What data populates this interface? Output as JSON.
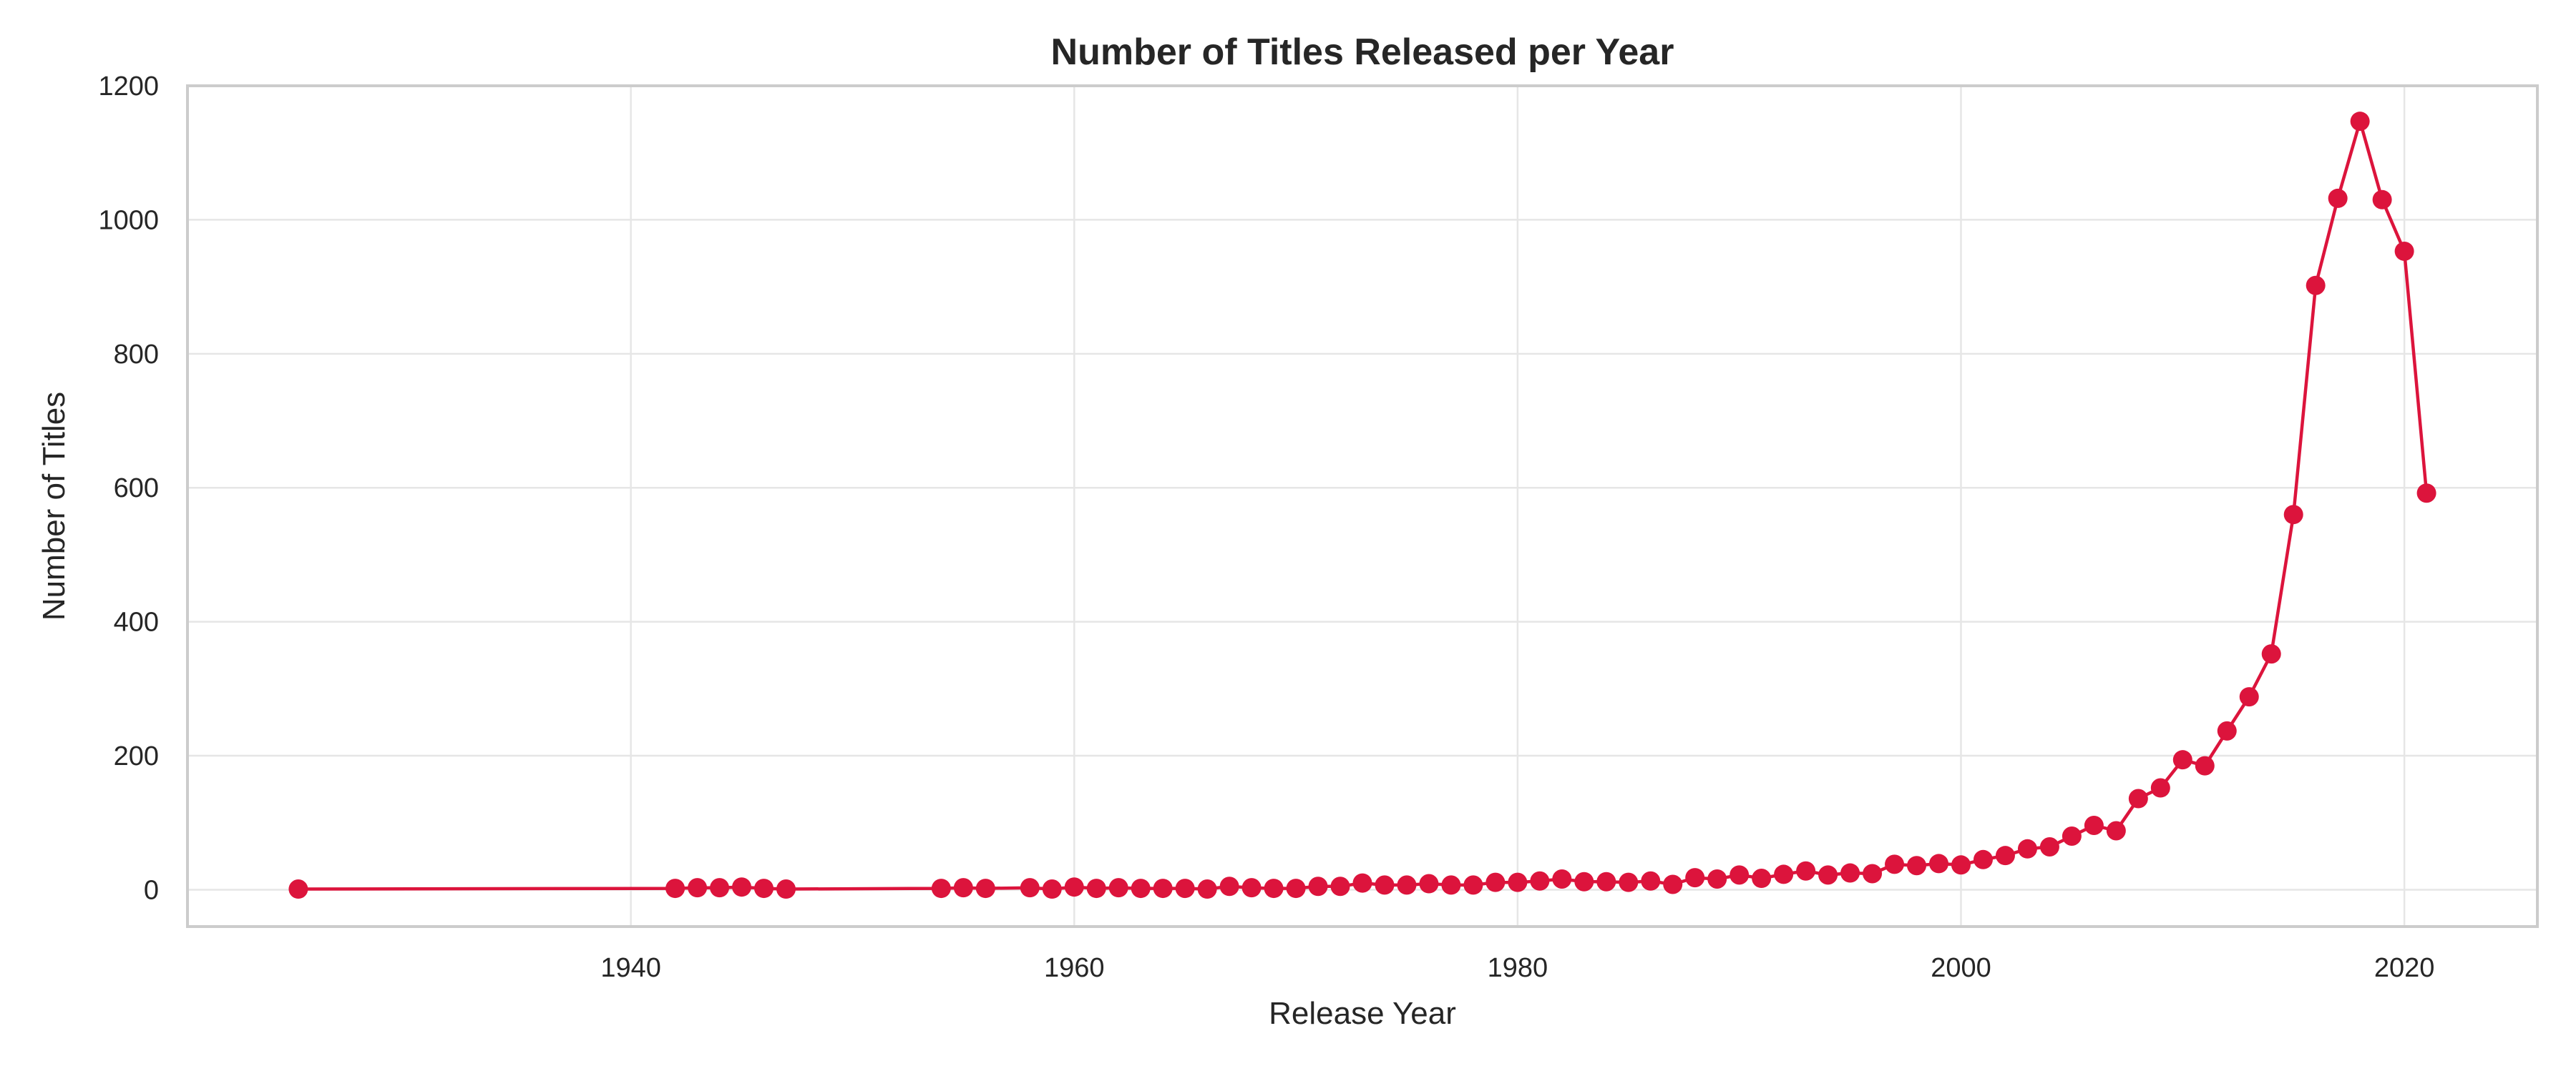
{
  "chart_data": {
    "type": "line",
    "title": "Number of Titles Released per Year",
    "xlabel": "Release Year",
    "ylabel": "Number of Titles",
    "xlim": [
      1920,
      2026
    ],
    "ylim": [
      -55,
      1200
    ],
    "xticks": [
      1940,
      1960,
      1980,
      2000,
      2020
    ],
    "yticks": [
      0,
      200,
      400,
      600,
      800,
      1000,
      1200
    ],
    "grid": true,
    "legend": "none",
    "series_color": "#dc143c",
    "x": [
      1925,
      1942,
      1943,
      1944,
      1945,
      1946,
      1947,
      1954,
      1955,
      1956,
      1958,
      1959,
      1960,
      1961,
      1962,
      1963,
      1964,
      1965,
      1966,
      1967,
      1968,
      1969,
      1970,
      1971,
      1972,
      1973,
      1974,
      1975,
      1976,
      1977,
      1978,
      1979,
      1980,
      1981,
      1982,
      1983,
      1984,
      1985,
      1986,
      1987,
      1988,
      1989,
      1990,
      1991,
      1992,
      1993,
      1994,
      1995,
      1996,
      1997,
      1998,
      1999,
      2000,
      2001,
      2002,
      2003,
      2004,
      2005,
      2006,
      2007,
      2008,
      2009,
      2010,
      2011,
      2012,
      2013,
      2014,
      2015,
      2016,
      2017,
      2018,
      2019,
      2020,
      2021
    ],
    "y": [
      1,
      2,
      3,
      3,
      4,
      2,
      1,
      2,
      3,
      2,
      3,
      1,
      4,
      2,
      3,
      2,
      2,
      2,
      1,
      5,
      3,
      2,
      2,
      5,
      5,
      10,
      7,
      7,
      9,
      7,
      7,
      11,
      11,
      13,
      16,
      12,
      12,
      11,
      13,
      8,
      18,
      16,
      22,
      17,
      23,
      28,
      22,
      25,
      24,
      38,
      36,
      39,
      37,
      45,
      51,
      61,
      64,
      80,
      96,
      88,
      136,
      152,
      194,
      185,
      237,
      288,
      352,
      560,
      902,
      1032,
      1147,
      1030,
      953,
      592
    ]
  }
}
